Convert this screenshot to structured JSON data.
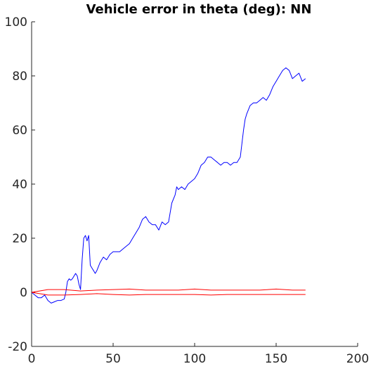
{
  "chart_data": {
    "type": "line",
    "title": "Vehicle error in theta (deg): NN",
    "xlabel": "",
    "ylabel": "",
    "xlim": [
      0,
      200
    ],
    "ylim": [
      -20,
      100
    ],
    "xticks": [
      0,
      50,
      100,
      150,
      200
    ],
    "yticks": [
      -20,
      0,
      20,
      40,
      60,
      80,
      100
    ],
    "grid": false,
    "legend": "none",
    "series": [
      {
        "color": "#0000ff",
        "x": [
          0,
          2,
          4,
          6,
          8,
          10,
          12,
          14,
          16,
          18,
          20,
          21,
          22,
          23,
          24,
          25,
          26,
          27,
          28,
          29,
          30,
          31,
          32,
          33,
          34,
          35,
          36,
          37,
          38,
          39,
          40,
          42,
          44,
          46,
          48,
          50,
          52,
          54,
          56,
          58,
          60,
          62,
          64,
          66,
          68,
          70,
          72,
          74,
          76,
          78,
          80,
          82,
          84,
          86,
          88,
          89,
          90,
          92,
          94,
          96,
          98,
          100,
          102,
          104,
          106,
          108,
          110,
          112,
          114,
          116,
          118,
          120,
          122,
          124,
          126,
          128,
          130,
          131,
          132,
          134,
          136,
          138,
          140,
          142,
          144,
          146,
          148,
          150,
          152,
          154,
          156,
          158,
          160,
          162,
          164,
          166,
          168
        ],
        "y": [
          0,
          -1,
          -2,
          -2,
          -1,
          -3,
          -4,
          -3.5,
          -3,
          -3,
          -2.5,
          0,
          4,
          5,
          4.5,
          5,
          6,
          7,
          6,
          3,
          1,
          12,
          20,
          21,
          19,
          21,
          10,
          9,
          8,
          7,
          8,
          11,
          13,
          12,
          14,
          15,
          15,
          15,
          16,
          17,
          18,
          20,
          22,
          24,
          27,
          28,
          26,
          25,
          25,
          23,
          26,
          25,
          26,
          33,
          36,
          39,
          38,
          39,
          38,
          40,
          41,
          42,
          44,
          47,
          48,
          50,
          50,
          49,
          48,
          47,
          48,
          48,
          47,
          48,
          48,
          50,
          60,
          64,
          66,
          69,
          70,
          70,
          71,
          72,
          71,
          73,
          76,
          78,
          80,
          82,
          83,
          82,
          79,
          80,
          81,
          78,
          79
        ]
      },
      {
        "color": "#ff0000",
        "x": [
          0,
          10,
          20,
          30,
          40,
          50,
          60,
          70,
          80,
          90,
          100,
          110,
          120,
          130,
          140,
          150,
          160,
          168
        ],
        "y": [
          0,
          1,
          1,
          0.5,
          0.8,
          1,
          1.2,
          0.8,
          0.8,
          0.8,
          1.2,
          0.8,
          0.8,
          0.8,
          0.8,
          1.2,
          0.8,
          0.8
        ]
      },
      {
        "color": "#ff0000",
        "x": [
          0,
          10,
          20,
          30,
          40,
          50,
          60,
          70,
          80,
          90,
          100,
          110,
          120,
          130,
          140,
          150,
          160,
          168
        ],
        "y": [
          0,
          -1,
          -1,
          -0.8,
          -0.5,
          -0.8,
          -1,
          -0.8,
          -0.8,
          -0.8,
          -0.8,
          -1,
          -0.8,
          -0.8,
          -0.8,
          -0.8,
          -0.8,
          -0.8
        ]
      }
    ]
  }
}
